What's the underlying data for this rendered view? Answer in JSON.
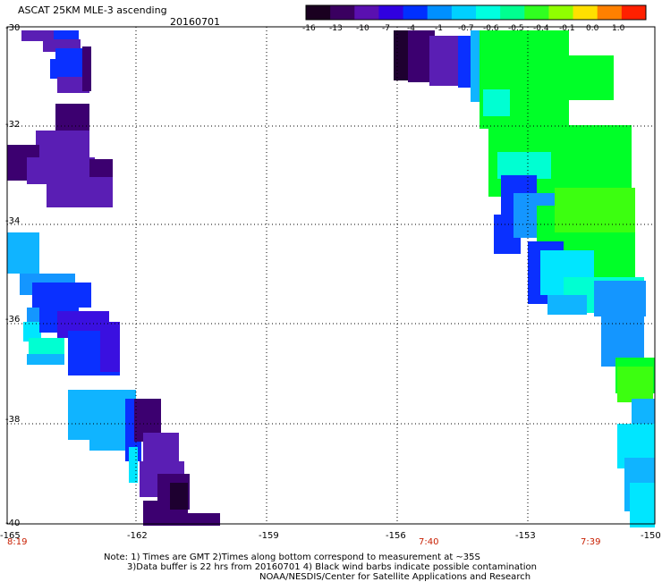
{
  "title": "ASCAT 25KM MLE-3 ascending",
  "date": "20160701",
  "colorbar": {
    "ticks": [
      "-16",
      "-13",
      "-10",
      "-7",
      "-4",
      "-1",
      "-0.7",
      "-0.6",
      "-0.5",
      "-0.4",
      "-0.1",
      "0.0",
      "1.0"
    ],
    "colors": [
      "#1a0020",
      "#3a0060",
      "#5a10b0",
      "#3000e0",
      "#0030ff",
      "#0090ff",
      "#00d0ff",
      "#00ffe0",
      "#00ff90",
      "#30ff20",
      "#90ff00",
      "#ffe000",
      "#ff8000",
      "#ff2000"
    ]
  },
  "y_axis": {
    "labels": [
      "-30",
      "-32",
      "-34",
      "-36",
      "-38",
      "-40"
    ]
  },
  "x_axis": {
    "labels": [
      "-165",
      "-162",
      "-159",
      "-156",
      "-153",
      "-150"
    ]
  },
  "time_labels": [
    "8:19",
    "7:40",
    "7:39"
  ],
  "time_label_color": "#c81e00",
  "notes": {
    "line1": "Note: 1) Times are GMT 2)Times along bottom correspond to measurement at ~35S",
    "line2": "3)Data buffer is 22 hrs from 20160701 4) Black wind barbs indicate possible contamination",
    "line3": "NOAA/NESDIS/Center for Satellite Applications and Research"
  },
  "palette": {
    "dark": "#1e0030",
    "deep_violet": "#3c0070",
    "violet": "#5a1eb4",
    "blue_violet": "#3a10e0",
    "blue": "#0a30ff",
    "azure": "#1496ff",
    "sky": "#10b4ff",
    "cyan": "#00e6ff",
    "aqua": "#00ffd2",
    "green": "#00ff28",
    "lime": "#3cff10"
  }
}
